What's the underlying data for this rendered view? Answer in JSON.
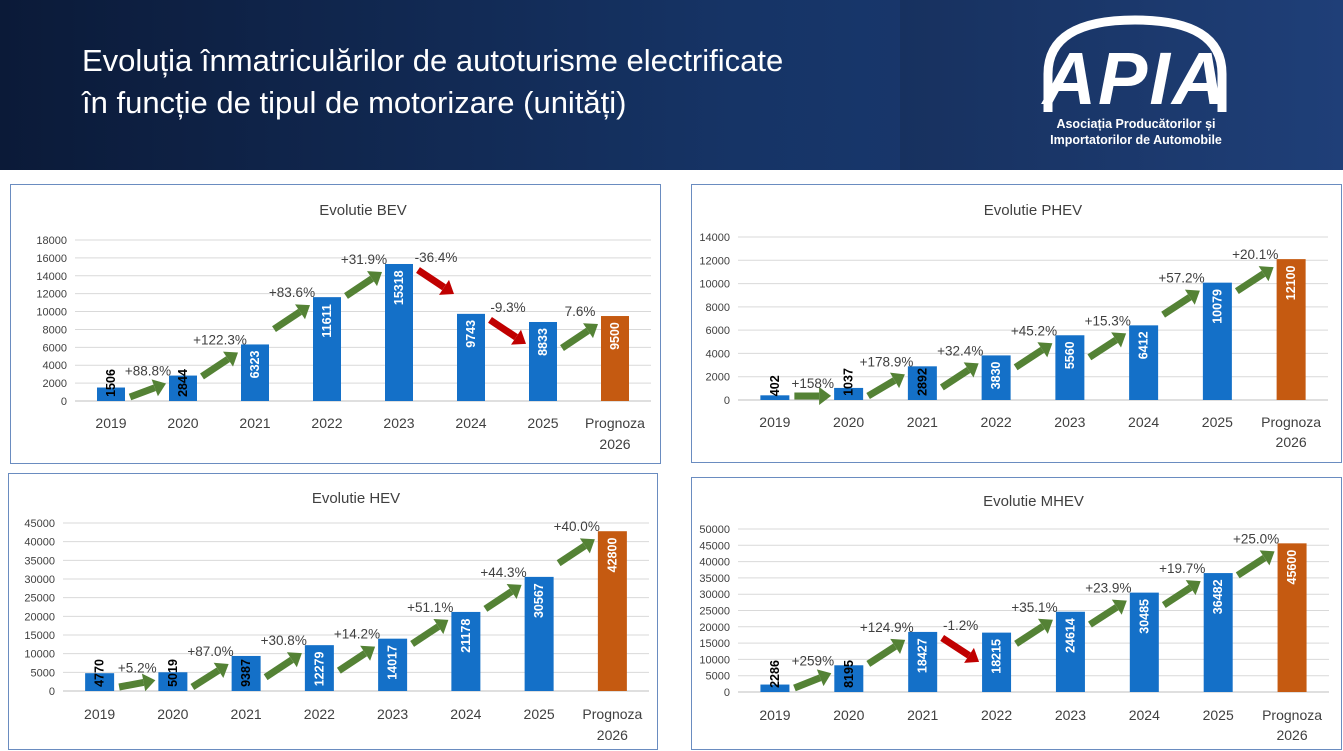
{
  "header": {
    "title_line1": "Evoluția înmatriculărilor de autoturisme electrificate",
    "title_line2": "în funcție de tipul de motorizare (unități)",
    "logo_text": "APIA",
    "logo_caption_line1": "Asociația Producătorilor și",
    "logo_caption_line2": "Importatorilor de Automobile"
  },
  "colors": {
    "bar_actual": "#1470c8",
    "bar_forecast": "#c55a11",
    "arrow_up": "#548235",
    "arrow_down": "#c00000",
    "grid": "#d9d9d9",
    "axis_text": "#404040"
  },
  "chart_data": [
    {
      "type": "bar",
      "title": "Evolutie BEV",
      "categories": [
        "2019",
        "2020",
        "2021",
        "2022",
        "2023",
        "2024",
        "2025",
        "Prognoza 2026"
      ],
      "values": [
        1506,
        2844,
        6323,
        11611,
        15318,
        9743,
        8833,
        9500
      ],
      "forecast_index": 7,
      "ylim": [
        0,
        18000
      ],
      "yticks": [
        0,
        2000,
        4000,
        6000,
        8000,
        10000,
        12000,
        14000,
        16000,
        18000
      ],
      "changes": [
        "+88.8%",
        "+122.3%",
        "+83.6%",
        "+31.9%",
        "-36.4%",
        "-9.3%",
        "7.6%"
      ],
      "grid": true
    },
    {
      "type": "bar",
      "title": "Evolutie PHEV",
      "categories": [
        "2019",
        "2020",
        "2021",
        "2022",
        "2023",
        "2024",
        "2025",
        "Prognoza 2026"
      ],
      "values": [
        402,
        1037,
        2892,
        3830,
        5560,
        6412,
        10079,
        12100
      ],
      "forecast_index": 7,
      "ylim": [
        0,
        14000
      ],
      "yticks": [
        0,
        2000,
        4000,
        6000,
        8000,
        10000,
        12000,
        14000
      ],
      "changes": [
        "+158%",
        "+178.9%",
        "+32.4%",
        "+45.2%",
        "+15.3%",
        "+57.2%",
        "+20.1%"
      ],
      "grid": true
    },
    {
      "type": "bar",
      "title": "Evolutie HEV",
      "categories": [
        "2019",
        "2020",
        "2021",
        "2022",
        "2023",
        "2024",
        "2025",
        "Prognoza 2026"
      ],
      "values": [
        4770,
        5019,
        9387,
        12279,
        14017,
        21178,
        30567,
        42800
      ],
      "forecast_index": 7,
      "ylim": [
        0,
        45000
      ],
      "yticks": [
        0,
        5000,
        10000,
        15000,
        20000,
        25000,
        30000,
        35000,
        40000,
        45000
      ],
      "changes": [
        "+5.2%",
        "+87.0%",
        "+30.8%",
        "+14.2%",
        "+51.1%",
        "+44.3%",
        "+40.0%"
      ],
      "grid": true
    },
    {
      "type": "bar",
      "title": "Evolutie MHEV",
      "categories": [
        "2019",
        "2020",
        "2021",
        "2022",
        "2023",
        "2024",
        "2025",
        "Prognoza 2026"
      ],
      "values": [
        2286,
        8195,
        18427,
        18215,
        24614,
        30485,
        36482,
        45600
      ],
      "forecast_index": 7,
      "ylim": [
        0,
        50000
      ],
      "yticks": [
        0,
        5000,
        10000,
        15000,
        20000,
        25000,
        30000,
        35000,
        40000,
        45000,
        50000
      ],
      "changes": [
        "+259%",
        "+124.9%",
        "-1.2%",
        "+35.1%",
        "+23.9%",
        "+19.7%",
        "+25.0%"
      ],
      "grid": true
    }
  ]
}
